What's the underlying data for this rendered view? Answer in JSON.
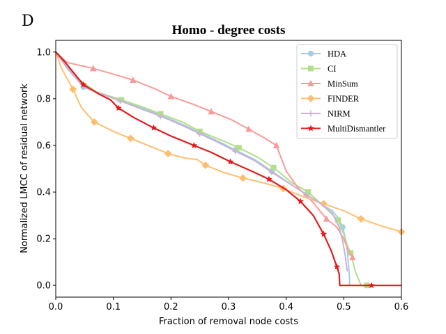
{
  "panel_label": "D",
  "chart_data": {
    "type": "line",
    "title": "Homo - degree costs",
    "xlabel": "Fraction of removal node costs",
    "ylabel": "Normalized LMCC of residual network",
    "xlim": [
      0,
      0.6
    ],
    "ylim": [
      -0.05,
      1.05
    ],
    "xticks": [
      0,
      0.1,
      0.2,
      0.3,
      0.4,
      0.5,
      0.6
    ],
    "xtick_labels": [
      "0.0",
      "0.1",
      "0.2",
      "0.3",
      "0.4",
      "0.5",
      "0.6"
    ],
    "yticks": [
      0,
      0.2,
      0.4,
      0.6,
      0.8,
      1.0
    ],
    "ytick_labels": [
      "0.0",
      "0.2",
      "0.4",
      "0.6",
      "0.8",
      "1.0"
    ],
    "grid": false,
    "legend_position": "top-right",
    "series": [
      {
        "name": "HDA",
        "color": "#a6cee3",
        "marker": "circle",
        "x": [
          0,
          0.02,
          0.048,
          0.08,
          0.112,
          0.15,
          0.182,
          0.22,
          0.25,
          0.28,
          0.312,
          0.345,
          0.375,
          0.41,
          0.435,
          0.46,
          0.48,
          0.49,
          0.498,
          0.503,
          0.506,
          0.508,
          0.51,
          0.51
        ],
        "y": [
          1.0,
          0.94,
          0.85,
          0.82,
          0.795,
          0.76,
          0.73,
          0.69,
          0.655,
          0.62,
          0.58,
          0.54,
          0.49,
          0.43,
          0.39,
          0.35,
          0.32,
          0.29,
          0.25,
          0.2,
          0.15,
          0.095,
          0.03,
          0.0
        ]
      },
      {
        "name": "CI",
        "color": "#b2df8a",
        "marker": "square",
        "x": [
          0,
          0.03,
          0.07,
          0.114,
          0.15,
          0.182,
          0.22,
          0.25,
          0.285,
          0.318,
          0.35,
          0.378,
          0.41,
          0.438,
          0.465,
          0.49,
          0.5,
          0.507,
          0.512,
          0.52,
          0.53,
          0.54
        ],
        "y": [
          1.0,
          0.9,
          0.83,
          0.795,
          0.765,
          0.735,
          0.7,
          0.66,
          0.625,
          0.59,
          0.55,
          0.505,
          0.44,
          0.4,
          0.34,
          0.28,
          0.22,
          0.165,
          0.14,
          0.06,
          0.0,
          0.0
        ]
      },
      {
        "name": "MinSum",
        "color": "#fb9a99",
        "marker": "triangle",
        "x": [
          0,
          0.02,
          0.065,
          0.1,
          0.134,
          0.17,
          0.2,
          0.24,
          0.27,
          0.305,
          0.335,
          0.36,
          0.383,
          0.4,
          0.42,
          0.445,
          0.47,
          0.488,
          0.5,
          0.508,
          0.515
        ],
        "y": [
          1.0,
          0.955,
          0.93,
          0.905,
          0.88,
          0.845,
          0.81,
          0.775,
          0.745,
          0.71,
          0.67,
          0.635,
          0.6,
          0.49,
          0.42,
          0.36,
          0.285,
          0.25,
          0.2,
          0.15,
          0.12
        ]
      },
      {
        "name": "FINDER",
        "color": "#fdbf6f",
        "marker": "diamond",
        "x": [
          0,
          0.01,
          0.03,
          0.045,
          0.067,
          0.1,
          0.13,
          0.165,
          0.195,
          0.225,
          0.245,
          0.26,
          0.29,
          0.325,
          0.36,
          0.395,
          0.43,
          0.465,
          0.5,
          0.53,
          0.565,
          0.6
        ],
        "y": [
          1.0,
          0.93,
          0.84,
          0.76,
          0.7,
          0.66,
          0.63,
          0.595,
          0.565,
          0.545,
          0.54,
          0.515,
          0.485,
          0.46,
          0.44,
          0.415,
          0.38,
          0.35,
          0.32,
          0.285,
          0.255,
          0.23
        ]
      },
      {
        "name": "NIRM",
        "color": "#cab2d6",
        "marker": "plus",
        "x": [
          0,
          0.02,
          0.048,
          0.08,
          0.112,
          0.15,
          0.182,
          0.22,
          0.25,
          0.28,
          0.312,
          0.345,
          0.375,
          0.41,
          0.435,
          0.46,
          0.48,
          0.492,
          0.498,
          0.503,
          0.506
        ],
        "y": [
          1.0,
          0.93,
          0.85,
          0.82,
          0.79,
          0.755,
          0.725,
          0.685,
          0.65,
          0.615,
          0.575,
          0.535,
          0.485,
          0.43,
          0.39,
          0.35,
          0.31,
          0.25,
          0.19,
          0.12,
          0.06
        ]
      },
      {
        "name": "MultiDismantler",
        "color": "#e31a1c",
        "marker": "star",
        "x": [
          0,
          0.015,
          0.048,
          0.075,
          0.095,
          0.109,
          0.135,
          0.17,
          0.2,
          0.24,
          0.27,
          0.303,
          0.34,
          0.37,
          0.4,
          0.425,
          0.447,
          0.465,
          0.478,
          0.488,
          0.492,
          0.493,
          0.52,
          0.55,
          0.6
        ],
        "y": [
          1.0,
          0.96,
          0.86,
          0.82,
          0.795,
          0.76,
          0.72,
          0.675,
          0.64,
          0.6,
          0.57,
          0.53,
          0.49,
          0.455,
          0.41,
          0.36,
          0.3,
          0.22,
          0.15,
          0.08,
          0.05,
          0.0,
          0.0,
          0.0,
          0.0
        ]
      }
    ],
    "marker_positions": [
      [
        0.048,
        0.112,
        0.182,
        0.25,
        0.312,
        0.375,
        0.435,
        0.498
      ],
      [
        0.114,
        0.182,
        0.25,
        0.318,
        0.378,
        0.438,
        0.49,
        0.512,
        0.54
      ],
      [
        0.065,
        0.134,
        0.2,
        0.27,
        0.335,
        0.383,
        0.47,
        0.515
      ],
      [
        0.03,
        0.067,
        0.13,
        0.195,
        0.26,
        0.325,
        0.395,
        0.465,
        0.53,
        0.6
      ],
      [
        0.112,
        0.182,
        0.25,
        0.312,
        0.375
      ],
      [
        0.048,
        0.109,
        0.17,
        0.24,
        0.303,
        0.37,
        0.425,
        0.465,
        0.488,
        0.548
      ]
    ]
  }
}
